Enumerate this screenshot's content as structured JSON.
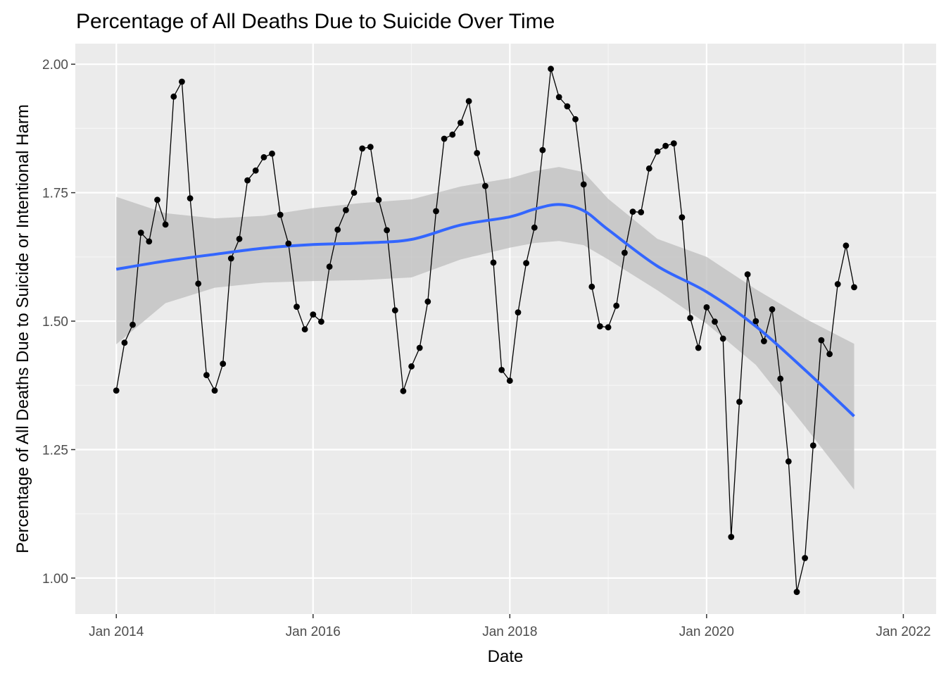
{
  "chart_data": {
    "type": "line",
    "title": "Percentage of All Deaths Due to Suicide Over Time",
    "xlabel": "Date",
    "ylabel": "Percentage of All Deaths Due to Suicide or Intentional Harm",
    "x_ticks": [
      "Jan 2014",
      "Jan 2016",
      "Jan 2018",
      "Jan 2020",
      "Jan 2022"
    ],
    "y_ticks": [
      "1.00",
      "1.25",
      "1.50",
      "1.75",
      "2.00"
    ],
    "xlim": [
      "2013-08",
      "2022-05"
    ],
    "ylim": [
      0.93,
      2.04
    ],
    "grid": true,
    "legend": "none",
    "colors": {
      "panel": "#ebebeb",
      "grid_major": "#ffffff",
      "grid_minor": "#f5f5f5",
      "points": "#000000",
      "line": "#000000",
      "smooth": "#3366ff",
      "ribbon": "#bebebe"
    },
    "series": [
      {
        "kind": "observed",
        "x": [
          "2014-01",
          "2014-02",
          "2014-03",
          "2014-04",
          "2014-05",
          "2014-06",
          "2014-07",
          "2014-08",
          "2014-09",
          "2014-10",
          "2014-11",
          "2014-12",
          "2015-01",
          "2015-02",
          "2015-03",
          "2015-04",
          "2015-05",
          "2015-06",
          "2015-07",
          "2015-08",
          "2015-09",
          "2015-10",
          "2015-11",
          "2015-12",
          "2016-01",
          "2016-02",
          "2016-03",
          "2016-04",
          "2016-05",
          "2016-06",
          "2016-07",
          "2016-08",
          "2016-09",
          "2016-10",
          "2016-11",
          "2016-12",
          "2017-01",
          "2017-02",
          "2017-03",
          "2017-04",
          "2017-05",
          "2017-06",
          "2017-07",
          "2017-08",
          "2017-09",
          "2017-10",
          "2017-11",
          "2017-12",
          "2018-01",
          "2018-02",
          "2018-03",
          "2018-04",
          "2018-05",
          "2018-06",
          "2018-07",
          "2018-08",
          "2018-09",
          "2018-10",
          "2018-11",
          "2018-12",
          "2019-01",
          "2019-02",
          "2019-03",
          "2019-04",
          "2019-05",
          "2019-06",
          "2019-07",
          "2019-08",
          "2019-09",
          "2019-10",
          "2019-11",
          "2019-12",
          "2020-01",
          "2020-02",
          "2020-03",
          "2020-04",
          "2020-05",
          "2020-06",
          "2020-07",
          "2020-08",
          "2020-09",
          "2020-10",
          "2020-11",
          "2020-12",
          "2021-01",
          "2021-02",
          "2021-03",
          "2021-04",
          "2021-05",
          "2021-06",
          "2021-07"
        ],
        "values": [
          1.365,
          1.458,
          1.493,
          1.672,
          1.655,
          1.736,
          1.688,
          1.937,
          1.966,
          1.739,
          1.573,
          1.395,
          1.365,
          1.417,
          1.622,
          1.66,
          1.774,
          1.793,
          1.819,
          1.826,
          1.707,
          1.651,
          1.528,
          1.484,
          1.513,
          1.499,
          1.606,
          1.678,
          1.716,
          1.75,
          1.836,
          1.839,
          1.736,
          1.677,
          1.521,
          1.364,
          1.412,
          1.448,
          1.538,
          1.714,
          1.855,
          1.863,
          1.886,
          1.928,
          1.827,
          1.763,
          1.614,
          1.405,
          1.384,
          1.517,
          1.613,
          1.682,
          1.833,
          1.991,
          1.936,
          1.918,
          1.893,
          1.766,
          1.567,
          1.49,
          1.488,
          1.53,
          1.633,
          1.713,
          1.712,
          1.797,
          1.83,
          1.841,
          1.846,
          1.702,
          1.506,
          1.448,
          1.527,
          1.499,
          1.466,
          1.08,
          1.343,
          1.591,
          1.5,
          1.461,
          1.523,
          1.388,
          1.227,
          0.973,
          1.039,
          1.258,
          1.463,
          1.436,
          1.572,
          1.647,
          1.566
        ]
      },
      {
        "kind": "smooth",
        "x": [
          "2014-01",
          "2014-07",
          "2015-01",
          "2015-07",
          "2016-01",
          "2016-07",
          "2017-01",
          "2017-07",
          "2018-01",
          "2018-04",
          "2018-07",
          "2018-10",
          "2019-01",
          "2019-07",
          "2020-01",
          "2020-07",
          "2021-01",
          "2021-07"
        ],
        "values": [
          1.601,
          1.617,
          1.63,
          1.642,
          1.649,
          1.652,
          1.659,
          1.687,
          1.703,
          1.718,
          1.727,
          1.715,
          1.678,
          1.607,
          1.557,
          1.49,
          1.405,
          1.315
        ],
        "lower": [
          1.455,
          1.535,
          1.565,
          1.575,
          1.578,
          1.58,
          1.585,
          1.62,
          1.643,
          1.652,
          1.656,
          1.648,
          1.62,
          1.56,
          1.495,
          1.415,
          1.295,
          1.172
        ],
        "upper": [
          1.742,
          1.71,
          1.7,
          1.705,
          1.72,
          1.73,
          1.737,
          1.762,
          1.778,
          1.792,
          1.8,
          1.79,
          1.738,
          1.66,
          1.625,
          1.562,
          1.505,
          1.456
        ]
      }
    ]
  }
}
